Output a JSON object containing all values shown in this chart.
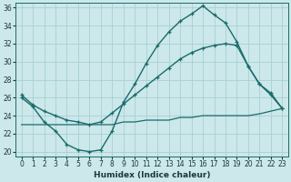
{
  "xlabel": "Humidex (Indice chaleur)",
  "bg_color": "#cce8ea",
  "grid_color": "#a8d0d4",
  "line_color": "#1a6b6b",
  "xlim": [
    -0.5,
    23.5
  ],
  "ylim": [
    19.5,
    36.5
  ],
  "xticks": [
    0,
    1,
    2,
    3,
    4,
    5,
    6,
    7,
    8,
    9,
    10,
    11,
    12,
    13,
    14,
    15,
    16,
    17,
    18,
    19,
    20,
    21,
    22,
    23
  ],
  "yticks": [
    20,
    22,
    24,
    26,
    28,
    30,
    32,
    34,
    36
  ],
  "line1_x": [
    0,
    1,
    2,
    3,
    4,
    5,
    6,
    7,
    8,
    9,
    10,
    11,
    12,
    13,
    14,
    15,
    16,
    17,
    18,
    19,
    20,
    21,
    22,
    23
  ],
  "line1_y": [
    26.0,
    25.0,
    23.3,
    22.3,
    20.8,
    20.2,
    20.0,
    20.2,
    22.3,
    25.5,
    27.5,
    29.8,
    31.8,
    33.3,
    34.5,
    35.3,
    36.2,
    35.2,
    34.3,
    32.2,
    29.5,
    27.5,
    26.5,
    24.8
  ],
  "line2_x": [
    0,
    1,
    2,
    3,
    4,
    5,
    6,
    7,
    8,
    9,
    10,
    11,
    12,
    13,
    14,
    15,
    16,
    17,
    18,
    19,
    20,
    21,
    22,
    23
  ],
  "line2_y": [
    26.3,
    25.2,
    24.5,
    24.0,
    23.5,
    23.3,
    23.0,
    23.3,
    24.3,
    25.3,
    26.3,
    27.3,
    28.3,
    29.3,
    30.3,
    31.0,
    31.5,
    31.8,
    32.0,
    31.8,
    29.5,
    27.5,
    26.3,
    24.8
  ],
  "line3_x": [
    0,
    1,
    2,
    3,
    4,
    5,
    6,
    7,
    8,
    9,
    10,
    11,
    12,
    13,
    14,
    15,
    16,
    17,
    18,
    19,
    20,
    21,
    22,
    23
  ],
  "line3_y": [
    23.0,
    23.0,
    23.0,
    23.0,
    23.0,
    23.0,
    23.0,
    23.0,
    23.0,
    23.3,
    23.3,
    23.5,
    23.5,
    23.5,
    23.8,
    23.8,
    24.0,
    24.0,
    24.0,
    24.0,
    24.0,
    24.2,
    24.5,
    24.8
  ]
}
